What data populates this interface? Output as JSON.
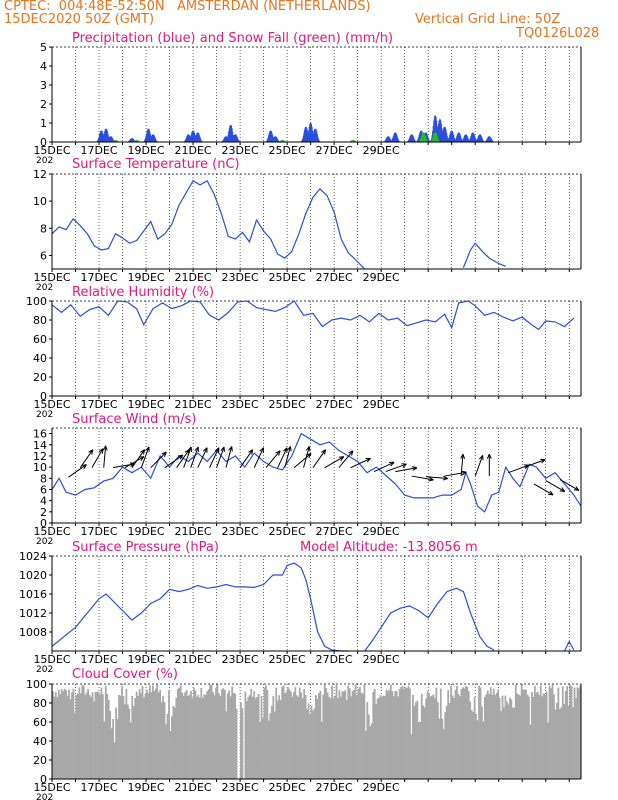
{
  "header": {
    "line1": "CPTEC:  004:48E-52:50N   AMSTERDAN (NETHERLANDS)",
    "line2_left": "15DEC2020 50Z (GMT)",
    "line2_right": "Vertical Grid Line: 50Z",
    "line3_right": "TQ0126L028"
  },
  "colors": {
    "text": "#e8731c",
    "title": "#e8157a",
    "line": "#2b4fd8",
    "snow": "#22c022",
    "cloud": "#a8a8a8"
  },
  "dates": [
    "15DEC",
    "17DEC",
    "19DEC",
    "21DEC",
    "23DEC",
    "25DEC",
    "27DEC",
    "29DEC"
  ],
  "year_fragment": "202",
  "chart_data": [
    {
      "type": "bar",
      "title": "Precipitation (blue) and Snow Fall (green) (mm/h)",
      "ylim": [
        0,
        5
      ],
      "yticks": [
        0,
        1,
        2,
        3,
        4,
        5
      ],
      "series": [
        {
          "name": "Precipitation",
          "color": "#2b4fd8",
          "events": [
            [
              2.1,
              0.6
            ],
            [
              2.3,
              0.7
            ],
            [
              2.5,
              0.3
            ],
            [
              3.4,
              0.2
            ],
            [
              4.1,
              0.7
            ],
            [
              4.3,
              0.4
            ],
            [
              5.8,
              0.4
            ],
            [
              6.0,
              0.6
            ],
            [
              6.2,
              0.5
            ],
            [
              7.4,
              0.3
            ],
            [
              7.6,
              0.9
            ],
            [
              7.8,
              0.4
            ],
            [
              9.3,
              0.6
            ],
            [
              9.5,
              0.3
            ],
            [
              10.8,
              0.8
            ],
            [
              11.0,
              1.0
            ],
            [
              11.2,
              0.7
            ],
            [
              14.3,
              0.3
            ],
            [
              14.6,
              0.5
            ],
            [
              15.3,
              0.4
            ],
            [
              15.7,
              0.6
            ],
            [
              15.9,
              0.5
            ],
            [
              16.3,
              1.4
            ],
            [
              16.5,
              1.2
            ],
            [
              16.7,
              0.8
            ],
            [
              17.0,
              0.6
            ],
            [
              17.3,
              0.5
            ],
            [
              17.6,
              0.4
            ],
            [
              17.9,
              0.5
            ],
            [
              18.2,
              0.4
            ],
            [
              18.6,
              0.3
            ]
          ]
        },
        {
          "name": "Snow Fall",
          "color": "#22c022",
          "events": [
            [
              2.7,
              0.1
            ],
            [
              3.6,
              0.1
            ],
            [
              9.8,
              0.1
            ],
            [
              12.8,
              0.1
            ],
            [
              15.8,
              0.5
            ],
            [
              16.3,
              0.5
            ]
          ]
        }
      ]
    },
    {
      "type": "line",
      "title": "Surface Temperature (nC)",
      "ylim": [
        5,
        12
      ],
      "yticks": [
        6,
        8,
        10,
        12
      ],
      "points": [
        [
          0,
          7.6
        ],
        [
          0.3,
          8.1
        ],
        [
          0.6,
          7.9
        ],
        [
          0.9,
          8.7
        ],
        [
          1.2,
          8.2
        ],
        [
          1.5,
          7.6
        ],
        [
          1.8,
          6.7
        ],
        [
          2.1,
          6.4
        ],
        [
          2.4,
          6.5
        ],
        [
          2.7,
          7.6
        ],
        [
          3.0,
          7.3
        ],
        [
          3.3,
          6.9
        ],
        [
          3.6,
          7.1
        ],
        [
          3.9,
          7.8
        ],
        [
          4.2,
          8.5
        ],
        [
          4.5,
          7.2
        ],
        [
          4.8,
          7.6
        ],
        [
          5.1,
          8.3
        ],
        [
          5.4,
          9.7
        ],
        [
          5.7,
          10.6
        ],
        [
          6.0,
          11.5
        ],
        [
          6.3,
          11.2
        ],
        [
          6.6,
          11.5
        ],
        [
          6.9,
          10.5
        ],
        [
          7.2,
          9.1
        ],
        [
          7.5,
          7.4
        ],
        [
          7.8,
          7.2
        ],
        [
          8.1,
          7.7
        ],
        [
          8.4,
          7.0
        ],
        [
          8.7,
          8.6
        ],
        [
          9.0,
          7.8
        ],
        [
          9.3,
          7.2
        ],
        [
          9.6,
          6.1
        ],
        [
          9.9,
          5.8
        ],
        [
          10.2,
          6.3
        ],
        [
          10.5,
          7.6
        ],
        [
          10.8,
          9.1
        ],
        [
          11.1,
          10.3
        ],
        [
          11.4,
          10.9
        ],
        [
          11.7,
          10.4
        ],
        [
          12.0,
          9.2
        ],
        [
          12.3,
          7.2
        ],
        [
          12.6,
          6.2
        ],
        [
          12.9,
          5.7
        ],
        [
          13.3,
          4.7
        ]
      ],
      "points2": [
        [
          17.5,
          5.1
        ],
        [
          17.8,
          6.4
        ],
        [
          18.0,
          6.9
        ],
        [
          18.3,
          6.3
        ],
        [
          18.6,
          5.8
        ],
        [
          19.0,
          5.4
        ],
        [
          19.3,
          5.2
        ]
      ]
    },
    {
      "type": "line",
      "title": "Relative Humidity (%)",
      "ylim": [
        0,
        100
      ],
      "yticks": [
        0,
        20,
        40,
        60,
        80,
        100
      ],
      "points": [
        [
          0,
          96
        ],
        [
          0.4,
          88
        ],
        [
          0.8,
          96
        ],
        [
          1.2,
          84
        ],
        [
          1.6,
          91
        ],
        [
          2.0,
          94
        ],
        [
          2.4,
          85
        ],
        [
          2.8,
          100
        ],
        [
          3.2,
          99
        ],
        [
          3.6,
          92
        ],
        [
          3.9,
          75
        ],
        [
          4.3,
          92
        ],
        [
          4.7,
          98
        ],
        [
          5.1,
          92
        ],
        [
          5.5,
          95
        ],
        [
          5.9,
          100
        ],
        [
          6.3,
          99
        ],
        [
          6.7,
          85
        ],
        [
          7.1,
          80
        ],
        [
          7.5,
          88
        ],
        [
          7.9,
          99
        ],
        [
          8.3,
          100
        ],
        [
          8.7,
          93
        ],
        [
          9.1,
          91
        ],
        [
          9.5,
          89
        ],
        [
          9.9,
          93
        ],
        [
          10.3,
          100
        ],
        [
          10.7,
          85
        ],
        [
          11.1,
          87
        ],
        [
          11.5,
          73
        ],
        [
          11.9,
          80
        ],
        [
          12.3,
          82
        ],
        [
          12.7,
          80
        ],
        [
          13.1,
          85
        ],
        [
          13.5,
          78
        ],
        [
          13.9,
          87
        ],
        [
          14.3,
          80
        ],
        [
          14.7,
          82
        ],
        [
          15.1,
          74
        ],
        [
          15.5,
          77
        ],
        [
          15.9,
          80
        ],
        [
          16.3,
          78
        ],
        [
          16.7,
          86
        ],
        [
          17.0,
          72
        ],
        [
          17.3,
          98
        ],
        [
          17.7,
          100
        ],
        [
          18.0,
          95
        ],
        [
          18.4,
          85
        ],
        [
          18.8,
          88
        ],
        [
          19.2,
          83
        ],
        [
          19.6,
          79
        ],
        [
          20.0,
          83
        ],
        [
          20.4,
          75
        ],
        [
          20.7,
          70
        ],
        [
          21.0,
          79
        ],
        [
          21.4,
          78
        ],
        [
          21.8,
          73
        ],
        [
          22.2,
          82
        ]
      ]
    },
    {
      "type": "line",
      "title": "Surface Wind (m/s)",
      "ylim": [
        0,
        17
      ],
      "yticks": [
        0,
        2,
        4,
        6,
        8,
        10,
        12,
        14,
        16
      ],
      "points": [
        [
          0,
          6
        ],
        [
          0.3,
          8
        ],
        [
          0.6,
          5.5
        ],
        [
          1.0,
          5
        ],
        [
          1.4,
          6
        ],
        [
          1.8,
          6.3
        ],
        [
          2.2,
          7.5
        ],
        [
          2.6,
          8
        ],
        [
          3.0,
          10
        ],
        [
          3.4,
          9
        ],
        [
          3.8,
          10
        ],
        [
          4.2,
          8
        ],
        [
          4.6,
          12
        ],
        [
          5.0,
          10
        ],
        [
          5.4,
          12
        ],
        [
          5.8,
          11
        ],
        [
          6.2,
          12.5
        ],
        [
          6.6,
          11
        ],
        [
          7.0,
          13
        ],
        [
          7.4,
          11
        ],
        [
          7.8,
          12
        ],
        [
          8.2,
          10
        ],
        [
          8.6,
          12.5
        ],
        [
          9.0,
          11
        ],
        [
          9.4,
          10
        ],
        [
          9.8,
          9.5
        ],
        [
          10.2,
          12
        ],
        [
          10.6,
          16
        ],
        [
          11.0,
          15
        ],
        [
          11.4,
          14
        ],
        [
          11.8,
          14.5
        ],
        [
          12.2,
          13
        ],
        [
          12.6,
          12
        ],
        [
          13.0,
          11
        ],
        [
          13.4,
          9
        ],
        [
          13.8,
          10
        ],
        [
          14.2,
          8.5
        ],
        [
          14.6,
          7
        ],
        [
          15.0,
          5
        ],
        [
          15.4,
          4.5
        ],
        [
          15.8,
          4.5
        ],
        [
          16.2,
          4.5
        ],
        [
          16.6,
          5
        ],
        [
          17.0,
          5
        ],
        [
          17.4,
          6
        ],
        [
          17.6,
          9
        ],
        [
          17.8,
          7
        ],
        [
          18.1,
          3
        ],
        [
          18.4,
          2
        ],
        [
          18.7,
          5
        ],
        [
          19.0,
          5.5
        ],
        [
          19.3,
          10
        ],
        [
          19.6,
          8
        ],
        [
          19.9,
          6.5
        ],
        [
          20.3,
          10.5
        ],
        [
          20.6,
          10
        ],
        [
          21.0,
          8
        ],
        [
          21.4,
          9
        ],
        [
          21.8,
          7
        ],
        [
          22.2,
          5
        ],
        [
          22.5,
          3
        ]
      ],
      "arrows": [
        [
          0.7,
          8.2,
          35
        ],
        [
          1.2,
          9.9,
          55
        ],
        [
          1.7,
          9.9,
          60
        ],
        [
          2.2,
          9.9,
          85
        ],
        [
          2.6,
          9.9,
          10
        ],
        [
          3.1,
          9.9,
          30
        ],
        [
          3.4,
          9.9,
          55
        ],
        [
          3.8,
          9.9,
          70
        ],
        [
          4.2,
          9.9,
          45
        ],
        [
          4.8,
          9.9,
          35
        ],
        [
          5.3,
          9.9,
          55
        ],
        [
          5.6,
          9.9,
          70
        ],
        [
          5.9,
          9.9,
          70
        ],
        [
          6.2,
          9.9,
          65
        ],
        [
          6.7,
          9.9,
          65
        ],
        [
          7.0,
          9.9,
          70
        ],
        [
          7.4,
          9.9,
          75
        ],
        [
          8.0,
          9.9,
          55
        ],
        [
          8.6,
          9.9,
          65
        ],
        [
          9.1,
          9.9,
          50
        ],
        [
          9.6,
          9.9,
          65
        ],
        [
          9.9,
          9.9,
          75
        ],
        [
          10.3,
          9.9,
          40
        ],
        [
          10.7,
          9.9,
          75
        ],
        [
          11.1,
          9.9,
          55
        ],
        [
          11.6,
          9.9,
          30
        ],
        [
          12.2,
          9.9,
          50
        ],
        [
          12.7,
          9.9,
          25
        ],
        [
          13.7,
          9.2,
          25
        ],
        [
          14.2,
          9.2,
          20
        ],
        [
          14.6,
          9.2,
          10
        ],
        [
          15.3,
          8.4,
          -10
        ],
        [
          15.9,
          8.3,
          -5
        ],
        [
          16.7,
          8.4,
          10
        ],
        [
          17.4,
          8.4,
          85
        ],
        [
          18.0,
          8.4,
          70
        ],
        [
          18.6,
          8.4,
          90
        ],
        [
          19.4,
          9.0,
          20
        ],
        [
          20.1,
          10.0,
          20
        ],
        [
          20.5,
          7.0,
          -30
        ],
        [
          21.0,
          7.6,
          -30
        ],
        [
          21.6,
          7.8,
          -30
        ]
      ]
    },
    {
      "type": "line",
      "title": "Surface Pressure (hPa)",
      "subtitle": "Model Altitude: -13.8056 m",
      "ylim": [
        1004,
        1024
      ],
      "yticks": [
        1008,
        1012,
        1016,
        1020,
        1024
      ],
      "points": [
        [
          0,
          1005
        ],
        [
          0.5,
          1007
        ],
        [
          1.0,
          1009
        ],
        [
          1.5,
          1012
        ],
        [
          2.0,
          1015
        ],
        [
          2.3,
          1016
        ],
        [
          2.7,
          1014
        ],
        [
          3.1,
          1012
        ],
        [
          3.4,
          1010.5
        ],
        [
          3.8,
          1012
        ],
        [
          4.2,
          1014
        ],
        [
          4.6,
          1015
        ],
        [
          5.0,
          1017
        ],
        [
          5.4,
          1016.5
        ],
        [
          5.8,
          1017
        ],
        [
          6.2,
          1017.8
        ],
        [
          6.6,
          1017.2
        ],
        [
          7.0,
          1017.5
        ],
        [
          7.4,
          1018
        ],
        [
          7.8,
          1017.5
        ],
        [
          8.2,
          1017.5
        ],
        [
          8.6,
          1017.4
        ],
        [
          9.0,
          1018
        ],
        [
          9.4,
          1020
        ],
        [
          9.8,
          1020
        ],
        [
          10.0,
          1022
        ],
        [
          10.3,
          1022.5
        ],
        [
          10.6,
          1021.5
        ],
        [
          10.8,
          1019
        ],
        [
          11.0,
          1015
        ],
        [
          11.3,
          1008
        ],
        [
          11.6,
          1005
        ],
        [
          11.9,
          1004.2
        ],
        [
          12.3,
          1003.8
        ],
        [
          12.6,
          1003.5
        ]
      ],
      "points2": [
        [
          13.3,
          1003.8
        ],
        [
          13.6,
          1006
        ],
        [
          14.0,
          1009
        ],
        [
          14.4,
          1012
        ],
        [
          14.8,
          1013
        ],
        [
          15.2,
          1013.5
        ],
        [
          15.6,
          1012.5
        ],
        [
          16.0,
          1011
        ],
        [
          16.4,
          1014
        ],
        [
          16.8,
          1016.5
        ],
        [
          17.2,
          1017.2
        ],
        [
          17.5,
          1016.5
        ],
        [
          17.8,
          1012
        ],
        [
          18.2,
          1007
        ],
        [
          18.5,
          1005
        ],
        [
          18.8,
          1004.2
        ]
      ],
      "points3": [
        [
          21.8,
          1003.8
        ],
        [
          22.0,
          1006
        ],
        [
          22.2,
          1004.2
        ]
      ]
    },
    {
      "type": "area",
      "title": "Cloud Cover (%)",
      "ylim": [
        0,
        100
      ],
      "yticks": [
        0,
        20,
        40,
        60,
        80,
        100
      ]
    }
  ]
}
